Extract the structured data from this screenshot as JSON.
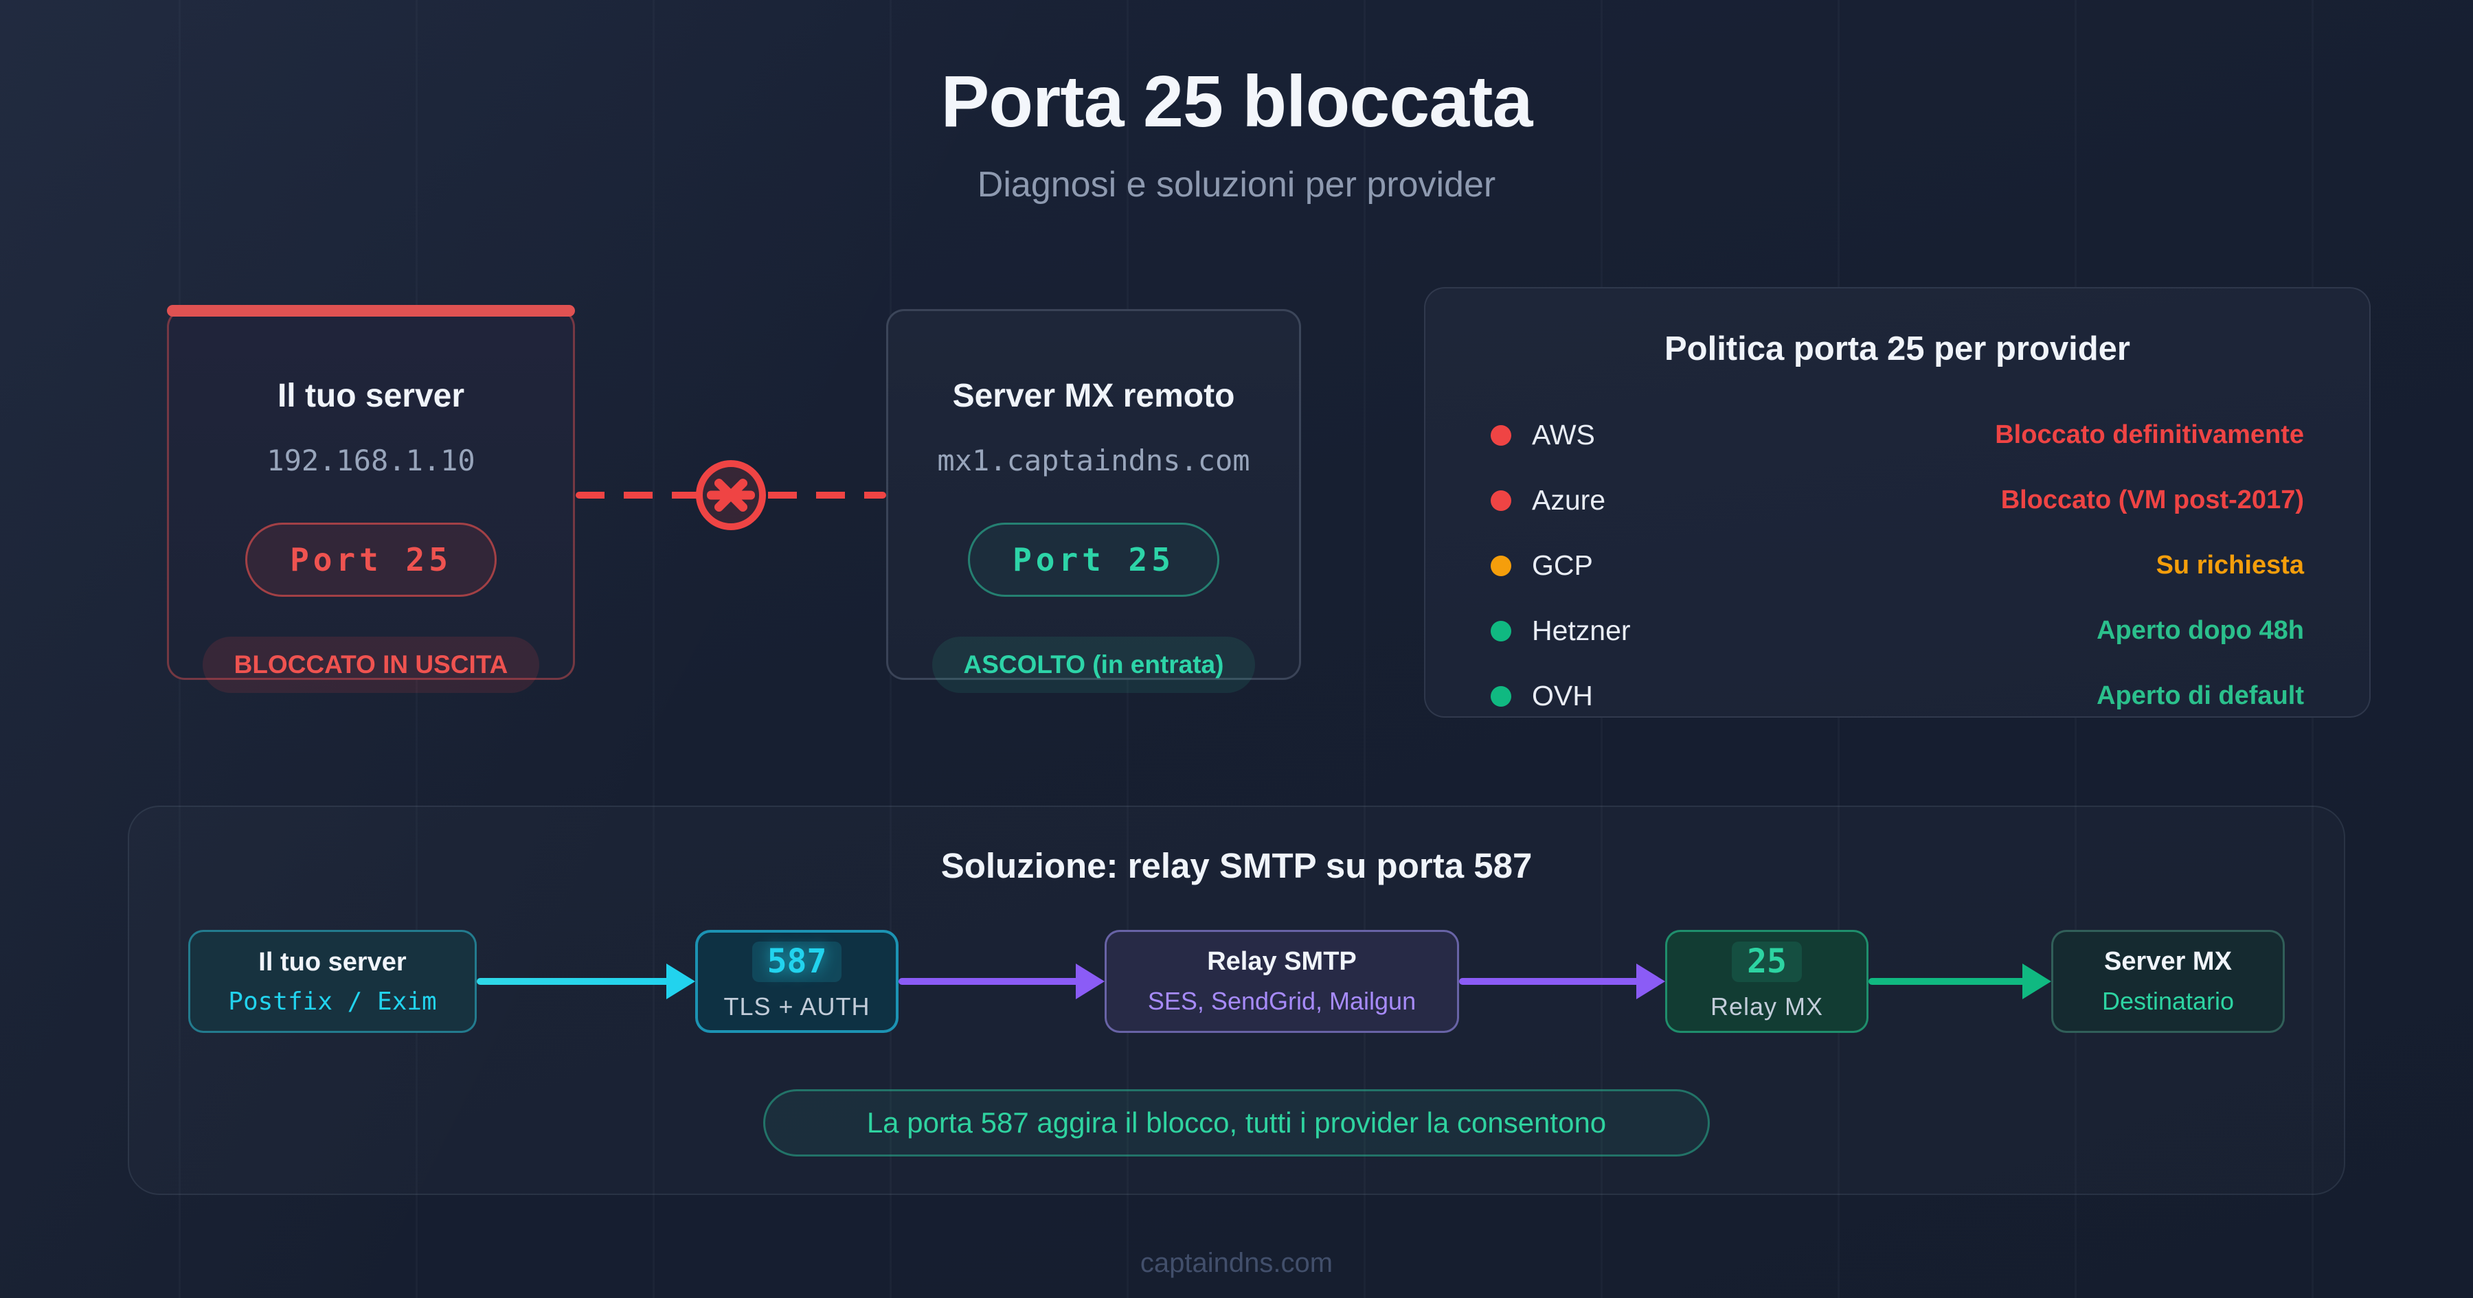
{
  "title": "Porta 25 bloccata",
  "subtitle": "Diagnosi e soluzioni per provider",
  "server_card": {
    "title": "Il tuo server",
    "address": "192.168.1.10",
    "port_badge": "Port 25",
    "status_badge": "BLOCCATO IN USCITA"
  },
  "mx_card": {
    "title": "Server MX remoto",
    "address": "mx1.captaindns.com",
    "port_badge": "Port 25",
    "status_badge": "ASCOLTO (in entrata)"
  },
  "policy_card": {
    "title": "Politica porta 25 per provider",
    "rows": [
      {
        "provider": "AWS",
        "status": "Bloccato definitivamente",
        "level": "blocked"
      },
      {
        "provider": "Azure",
        "status": "Bloccato (VM post-2017)",
        "level": "blocked"
      },
      {
        "provider": "GCP",
        "status": "Su richiesta",
        "level": "request"
      },
      {
        "provider": "Hetzner",
        "status": "Aperto dopo 48h",
        "level": "open"
      },
      {
        "provider": "OVH",
        "status": "Aperto di default",
        "level": "open"
      }
    ]
  },
  "solution": {
    "title": "Soluzione: relay SMTP su porta 587",
    "steps": [
      {
        "title": "Il tuo server",
        "subtitle": "Postfix / Exim",
        "theme": "cyan"
      },
      {
        "title": "587",
        "subtitle": "TLS + AUTH",
        "theme": "cyan-strong"
      },
      {
        "title": "Relay SMTP",
        "subtitle": "SES, SendGrid, Mailgun",
        "theme": "purple"
      },
      {
        "title": "25",
        "subtitle": "Relay MX",
        "theme": "green-strong"
      },
      {
        "title": "Server MX",
        "subtitle": "Destinatario",
        "theme": "green"
      }
    ],
    "arrows": [
      "cyan",
      "purple",
      "purple",
      "green"
    ],
    "note": "La porta 587 aggira il blocco, tutti i provider la consentono"
  },
  "footer": "captaindns.com",
  "colors": {
    "red": "#ef4444",
    "orange": "#f59e0b",
    "green": "#10b981",
    "teal": "#2dd4a8",
    "cyan": "#22d3ee",
    "purple": "#8b5cf6"
  }
}
